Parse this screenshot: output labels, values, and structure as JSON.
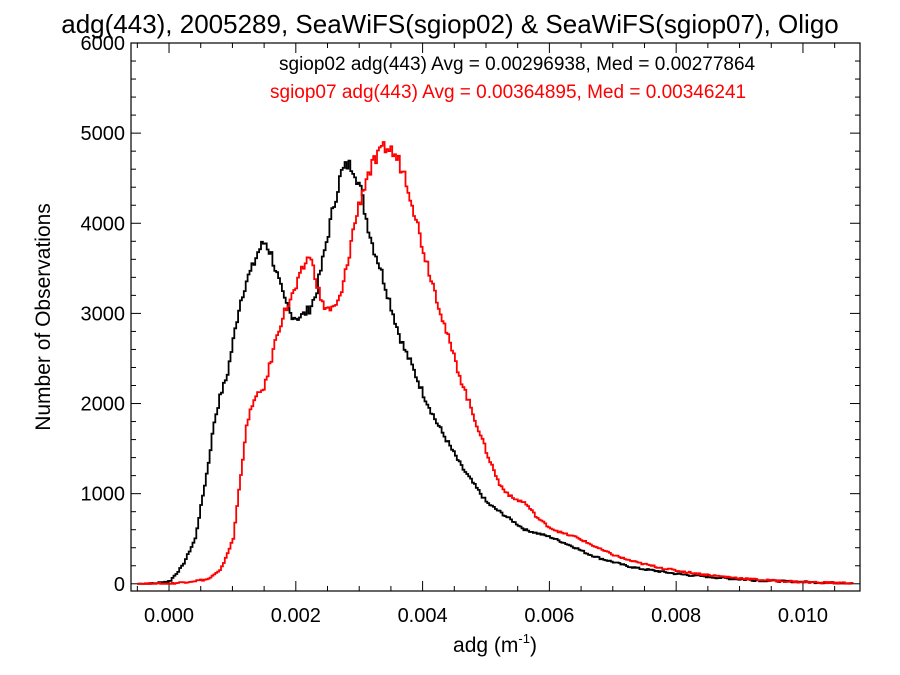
{
  "chart_data": {
    "type": "line",
    "title": "adg(443), 2005289, SeaWiFS(sgiop02) & SeaWiFS(sgiop07), Oligo",
    "xlabel": "adg (m",
    "xlabel_sup": "-1",
    "xlabel_close": ")",
    "ylabel": "Number of Observations",
    "xlim": [
      -0.0006,
      0.0109
    ],
    "ylim": [
      -80,
      6000
    ],
    "xticks": [
      0.0,
      0.002,
      0.004,
      0.006,
      0.008,
      0.01
    ],
    "xtick_labels": [
      "0.000",
      "0.002",
      "0.004",
      "0.006",
      "0.008",
      "0.010"
    ],
    "yticks": [
      0,
      1000,
      2000,
      3000,
      4000,
      5000,
      6000
    ],
    "ytick_labels": [
      "0",
      "1000",
      "2000",
      "3000",
      "4000",
      "5000",
      "6000"
    ],
    "grid": false,
    "legend_position": "top-right",
    "series": [
      {
        "name": "sgiop02 adg(443) Avg = 0.00296938, Med = 0.00277864",
        "color": "#000000",
        "x": [
          -0.0005,
          -0.0003,
          0.0,
          0.0002,
          0.0004,
          0.0005,
          0.0006,
          0.0007,
          0.0008,
          0.0009,
          0.001,
          0.0011,
          0.0012,
          0.0013,
          0.0014,
          0.0015,
          0.0016,
          0.0017,
          0.0018,
          0.0019,
          0.002,
          0.0021,
          0.0022,
          0.0023,
          0.0024,
          0.0025,
          0.0026,
          0.0027,
          0.0028,
          0.0029,
          0.003,
          0.0031,
          0.0032,
          0.0033,
          0.0034,
          0.0035,
          0.0036,
          0.0037,
          0.0038,
          0.004,
          0.0042,
          0.0044,
          0.0046,
          0.0048,
          0.005,
          0.0052,
          0.0054,
          0.0056,
          0.0058,
          0.006,
          0.0062,
          0.0064,
          0.0066,
          0.0068,
          0.007,
          0.0072,
          0.0074,
          0.0076,
          0.0078,
          0.008,
          0.0082,
          0.0084,
          0.0086,
          0.0088,
          0.009,
          0.0092,
          0.0094,
          0.0096,
          0.0098,
          0.01,
          0.0102,
          0.0104,
          0.0106,
          0.0108
        ],
        "values": [
          0,
          0,
          30,
          200,
          500,
          900,
          1300,
          1800,
          2100,
          2300,
          2700,
          3100,
          3350,
          3500,
          3700,
          3800,
          3650,
          3400,
          3150,
          3000,
          2950,
          2980,
          3050,
          3200,
          3550,
          3900,
          4250,
          4550,
          4650,
          4620,
          4400,
          4050,
          3750,
          3550,
          3300,
          3050,
          2800,
          2600,
          2450,
          2100,
          1800,
          1550,
          1300,
          1100,
          900,
          800,
          700,
          600,
          560,
          520,
          460,
          400,
          330,
          280,
          240,
          200,
          170,
          150,
          130,
          110,
          95,
          85,
          70,
          60,
          50,
          40,
          35,
          30,
          25,
          20,
          16,
          12,
          10,
          8
        ]
      },
      {
        "name": "sgiop07 adg(443) Avg = 0.00364895, Med = 0.00346241",
        "color": "#ff0000",
        "x": [
          -0.0005,
          0.0,
          0.0006,
          0.0008,
          0.001,
          0.0011,
          0.0012,
          0.0013,
          0.0014,
          0.0015,
          0.0016,
          0.0017,
          0.0018,
          0.0019,
          0.002,
          0.0021,
          0.0022,
          0.0023,
          0.0024,
          0.0025,
          0.0026,
          0.0027,
          0.0028,
          0.0029,
          0.003,
          0.0031,
          0.0032,
          0.0033,
          0.0034,
          0.0035,
          0.0036,
          0.0037,
          0.0038,
          0.0039,
          0.004,
          0.0042,
          0.0044,
          0.0046,
          0.0048,
          0.005,
          0.0052,
          0.0054,
          0.0056,
          0.0058,
          0.006,
          0.0062,
          0.0064,
          0.0066,
          0.0068,
          0.007,
          0.0072,
          0.0074,
          0.0076,
          0.0078,
          0.008,
          0.0082,
          0.0084,
          0.0086,
          0.0088,
          0.009,
          0.0092,
          0.0094,
          0.0096,
          0.0098,
          0.01,
          0.0102,
          0.0104,
          0.0106,
          0.0108
        ],
        "values": [
          0,
          0,
          50,
          150,
          500,
          1100,
          1700,
          2000,
          2100,
          2200,
          2500,
          2800,
          3000,
          3150,
          3300,
          3500,
          3650,
          3400,
          3100,
          3050,
          3050,
          3200,
          3550,
          3950,
          4250,
          4500,
          4650,
          4750,
          4850,
          4800,
          4700,
          4550,
          4300,
          4000,
          3700,
          3200,
          2700,
          2250,
          1850,
          1450,
          1100,
          950,
          900,
          730,
          620,
          560,
          520,
          450,
          380,
          320,
          270,
          230,
          200,
          170,
          145,
          125,
          105,
          90,
          75,
          62,
          50,
          40,
          32,
          25,
          20,
          15,
          12,
          9,
          7
        ]
      }
    ]
  }
}
